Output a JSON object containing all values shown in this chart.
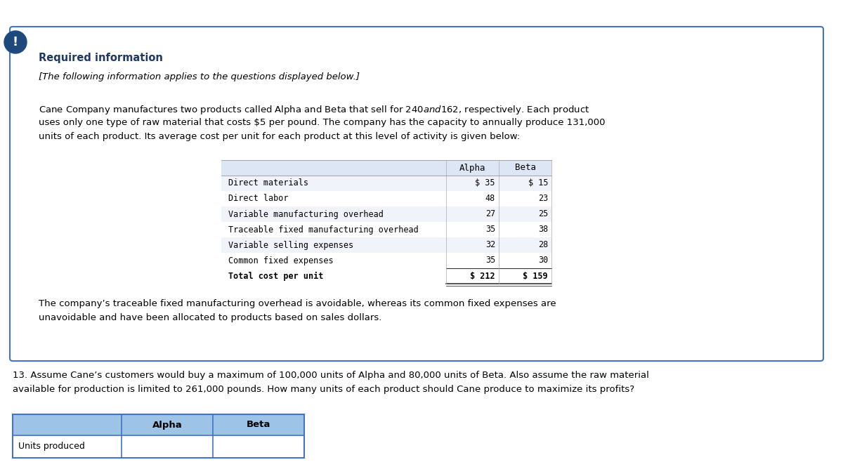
{
  "required_info_title": "Required information",
  "italic_subtitle": "[The following information applies to the questions displayed below.]",
  "paragraph_line1": "Cane Company manufactures two products called Alpha and Beta that sell for $240 and $162, respectively. Each product",
  "paragraph_line2": "uses only one type of raw material that costs $5 per pound. The company has the capacity to annually produce 131,000",
  "paragraph_line3": "units of each product. Its average cost per unit for each product at this level of activity is given below:",
  "table_rows": [
    [
      "Direct materials",
      "$ 35",
      "$ 15"
    ],
    [
      "Direct labor",
      "48",
      "23"
    ],
    [
      "Variable manufacturing overhead",
      "27",
      "25"
    ],
    [
      "Traceable fixed manufacturing overhead",
      "35",
      "38"
    ],
    [
      "Variable selling expenses",
      "32",
      "28"
    ],
    [
      "Common fixed expenses",
      "35",
      "30"
    ],
    [
      "Total cost per unit",
      "$ 212",
      "$ 159"
    ]
  ],
  "table_header": [
    "",
    "Alpha",
    "Beta"
  ],
  "footer_line1": "The company’s traceable fixed manufacturing overhead is avoidable, whereas its common fixed expenses are",
  "footer_line2": "unavoidable and have been allocated to products based on sales dollars.",
  "question_line1": "13. Assume Cane’s customers would buy a maximum of 100,000 units of Alpha and 80,000 units of Beta. Also assume the raw material",
  "question_line2": "available for production is limited to 261,000 pounds. How many units of each product should Cane produce to maximize its profits?",
  "answer_table_header": [
    "",
    "Alpha",
    "Beta"
  ],
  "answer_table_rows": [
    [
      "Units produced",
      "",
      ""
    ]
  ],
  "box_border_color": "#4472c4",
  "icon_bg_color": "#1f497d",
  "required_info_color": "#1f3864",
  "table_header_bg": "#dce6f4",
  "answer_header_bg": "#9dc3e6",
  "monospace_font": "monospace",
  "normal_font": "DejaVu Sans"
}
